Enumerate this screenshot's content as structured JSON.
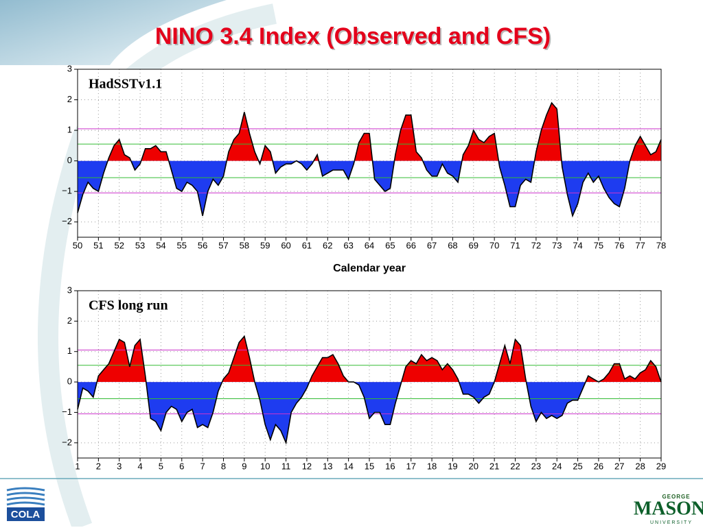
{
  "title": "NINO 3.4 Index (Observed and CFS)",
  "logos": {
    "left": "COLA",
    "right_top": "GEORGE",
    "right_main": "MASON",
    "right_bottom": "UNIVERSITY"
  },
  "chart_data": [
    {
      "type": "area",
      "label": "HadSSTv1.1",
      "xlabel": "Calendar year",
      "pos_color": "#ee0000",
      "neg_color": "#1e3cf0",
      "line_color": "#000000",
      "grid": true,
      "xlim": [
        50,
        78
      ],
      "xticks": [
        50,
        51,
        52,
        53,
        54,
        55,
        56,
        57,
        58,
        59,
        60,
        61,
        62,
        63,
        64,
        65,
        66,
        67,
        68,
        69,
        70,
        71,
        72,
        73,
        74,
        75,
        76,
        77,
        78
      ],
      "ylim": [
        -2.5,
        3
      ],
      "yticks": [
        {
          "value": -2,
          "label": "−2"
        },
        {
          "value": -1,
          "label": "−1"
        },
        0,
        1,
        2,
        3
      ],
      "hlines": [
        {
          "value": 1.05,
          "color": "#cc33cc"
        },
        {
          "value": 0.55,
          "color": "#33bb33"
        },
        {
          "value": -0.55,
          "color": "#33bb33"
        },
        {
          "value": -1.05,
          "color": "#cc33cc"
        }
      ],
      "x": [
        50,
        50.25,
        50.5,
        50.75,
        51,
        51.25,
        51.5,
        51.75,
        52,
        52.25,
        52.5,
        52.75,
        53,
        53.25,
        53.5,
        53.75,
        54,
        54.25,
        54.5,
        54.75,
        55,
        55.25,
        55.5,
        55.75,
        56,
        56.25,
        56.5,
        56.75,
        57,
        57.25,
        57.5,
        57.75,
        58,
        58.25,
        58.5,
        58.75,
        59,
        59.25,
        59.5,
        59.75,
        60,
        60.25,
        60.5,
        60.75,
        61,
        61.25,
        61.5,
        61.75,
        62,
        62.25,
        62.5,
        62.75,
        63,
        63.25,
        63.5,
        63.75,
        64,
        64.25,
        64.5,
        64.75,
        65,
        65.25,
        65.5,
        65.75,
        66,
        66.25,
        66.5,
        66.75,
        67,
        67.25,
        67.5,
        67.75,
        68,
        68.25,
        68.5,
        68.75,
        69,
        69.25,
        69.5,
        69.75,
        70,
        70.25,
        70.5,
        70.75,
        71,
        71.25,
        71.5,
        71.75,
        72,
        72.25,
        72.5,
        72.75,
        73,
        73.25,
        73.5,
        73.75,
        74,
        74.25,
        74.5,
        74.75,
        75,
        75.25,
        75.5,
        75.75,
        76,
        76.25,
        76.5,
        76.75,
        77,
        77.25,
        77.5,
        77.75,
        78
      ],
      "values": [
        -1.7,
        -1.1,
        -0.7,
        -0.9,
        -1.0,
        -0.4,
        0.1,
        0.5,
        0.7,
        0.2,
        0.1,
        -0.3,
        -0.1,
        0.4,
        0.4,
        0.5,
        0.3,
        0.3,
        -0.3,
        -0.9,
        -1.0,
        -0.7,
        -0.8,
        -1.0,
        -1.8,
        -1.0,
        -0.6,
        -0.8,
        -0.5,
        0.3,
        0.7,
        0.9,
        1.6,
        0.9,
        0.3,
        -0.1,
        0.5,
        0.3,
        -0.4,
        -0.2,
        -0.1,
        -0.1,
        0.0,
        -0.1,
        -0.3,
        -0.1,
        0.2,
        -0.5,
        -0.4,
        -0.3,
        -0.3,
        -0.3,
        -0.6,
        -0.1,
        0.6,
        0.9,
        0.9,
        -0.6,
        -0.8,
        -1.0,
        -0.9,
        0.2,
        1.0,
        1.5,
        1.5,
        0.3,
        0.1,
        -0.3,
        -0.5,
        -0.5,
        -0.1,
        -0.4,
        -0.5,
        -0.7,
        0.2,
        0.5,
        1.0,
        0.7,
        0.6,
        0.8,
        0.9,
        -0.2,
        -0.8,
        -1.5,
        -1.5,
        -0.8,
        -0.6,
        -0.7,
        0.3,
        1.0,
        1.5,
        1.9,
        1.7,
        -0.2,
        -1.1,
        -1.8,
        -1.4,
        -0.7,
        -0.4,
        -0.7,
        -0.5,
        -0.9,
        -1.2,
        -1.4,
        -1.5,
        -0.9,
        0.0,
        0.5,
        0.8,
        0.5,
        0.2,
        0.3,
        0.7
      ]
    },
    {
      "type": "area",
      "label": "CFS long run",
      "pos_color": "#ee0000",
      "neg_color": "#1e3cf0",
      "line_color": "#000000",
      "grid": true,
      "xlim": [
        1,
        29
      ],
      "xticks": [
        1,
        2,
        3,
        4,
        5,
        6,
        7,
        8,
        9,
        10,
        11,
        12,
        13,
        14,
        15,
        16,
        17,
        18,
        19,
        20,
        21,
        22,
        23,
        24,
        25,
        26,
        27,
        28,
        29
      ],
      "ylim": [
        -2.5,
        3
      ],
      "yticks": [
        {
          "value": -2,
          "label": "−2"
        },
        {
          "value": -1,
          "label": "−1"
        },
        0,
        1,
        2,
        3
      ],
      "hlines": [
        {
          "value": 1.05,
          "color": "#cc33cc"
        },
        {
          "value": 0.55,
          "color": "#33bb33"
        },
        {
          "value": -0.55,
          "color": "#33bb33"
        },
        {
          "value": -1.05,
          "color": "#cc33cc"
        }
      ],
      "x": [
        1,
        1.25,
        1.5,
        1.75,
        2,
        2.25,
        2.5,
        2.75,
        3,
        3.25,
        3.5,
        3.75,
        4,
        4.25,
        4.5,
        4.75,
        5,
        5.25,
        5.5,
        5.75,
        6,
        6.25,
        6.5,
        6.75,
        7,
        7.25,
        7.5,
        7.75,
        8,
        8.25,
        8.5,
        8.75,
        9,
        9.25,
        9.5,
        9.75,
        10,
        10.25,
        10.5,
        10.75,
        11,
        11.25,
        11.5,
        11.75,
        12,
        12.25,
        12.5,
        12.75,
        13,
        13.25,
        13.5,
        13.75,
        14,
        14.25,
        14.5,
        14.75,
        15,
        15.25,
        15.5,
        15.75,
        16,
        16.25,
        16.5,
        16.75,
        17,
        17.25,
        17.5,
        17.75,
        18,
        18.25,
        18.5,
        18.75,
        19,
        19.25,
        19.5,
        19.75,
        20,
        20.25,
        20.5,
        20.75,
        21,
        21.25,
        21.5,
        21.75,
        22,
        22.25,
        22.5,
        22.75,
        23,
        23.25,
        23.5,
        23.75,
        24,
        24.25,
        24.5,
        24.75,
        25,
        25.25,
        25.5,
        25.75,
        26,
        26.25,
        26.5,
        26.75,
        27,
        27.25,
        27.5,
        27.75,
        28,
        28.25,
        28.5,
        28.75,
        29
      ],
      "values": [
        -0.9,
        -0.2,
        -0.3,
        -0.5,
        0.2,
        0.4,
        0.6,
        1.0,
        1.4,
        1.3,
        0.5,
        1.2,
        1.4,
        0.2,
        -1.2,
        -1.3,
        -1.6,
        -1.0,
        -0.8,
        -0.9,
        -1.3,
        -1.0,
        -0.9,
        -1.5,
        -1.4,
        -1.5,
        -1.0,
        -0.3,
        0.1,
        0.3,
        0.8,
        1.3,
        1.5,
        0.8,
        0.0,
        -0.6,
        -1.4,
        -1.9,
        -1.4,
        -1.6,
        -2.0,
        -1.0,
        -0.7,
        -0.5,
        -0.2,
        0.2,
        0.5,
        0.8,
        0.8,
        0.9,
        0.6,
        0.2,
        0.0,
        0.0,
        -0.1,
        -0.5,
        -1.2,
        -1.0,
        -1.0,
        -1.4,
        -1.4,
        -0.7,
        -0.1,
        0.5,
        0.7,
        0.6,
        0.9,
        0.7,
        0.8,
        0.7,
        0.4,
        0.6,
        0.4,
        0.1,
        -0.4,
        -0.4,
        -0.5,
        -0.7,
        -0.5,
        -0.4,
        0.0,
        0.6,
        1.2,
        0.6,
        1.4,
        1.2,
        0.1,
        -0.8,
        -1.3,
        -1.0,
        -1.2,
        -1.1,
        -1.2,
        -1.1,
        -0.7,
        -0.6,
        -0.6,
        -0.2,
        0.2,
        0.1,
        0.0,
        0.1,
        0.3,
        0.6,
        0.6,
        0.1,
        0.2,
        0.1,
        0.3,
        0.4,
        0.7,
        0.5,
        0.0
      ]
    }
  ]
}
